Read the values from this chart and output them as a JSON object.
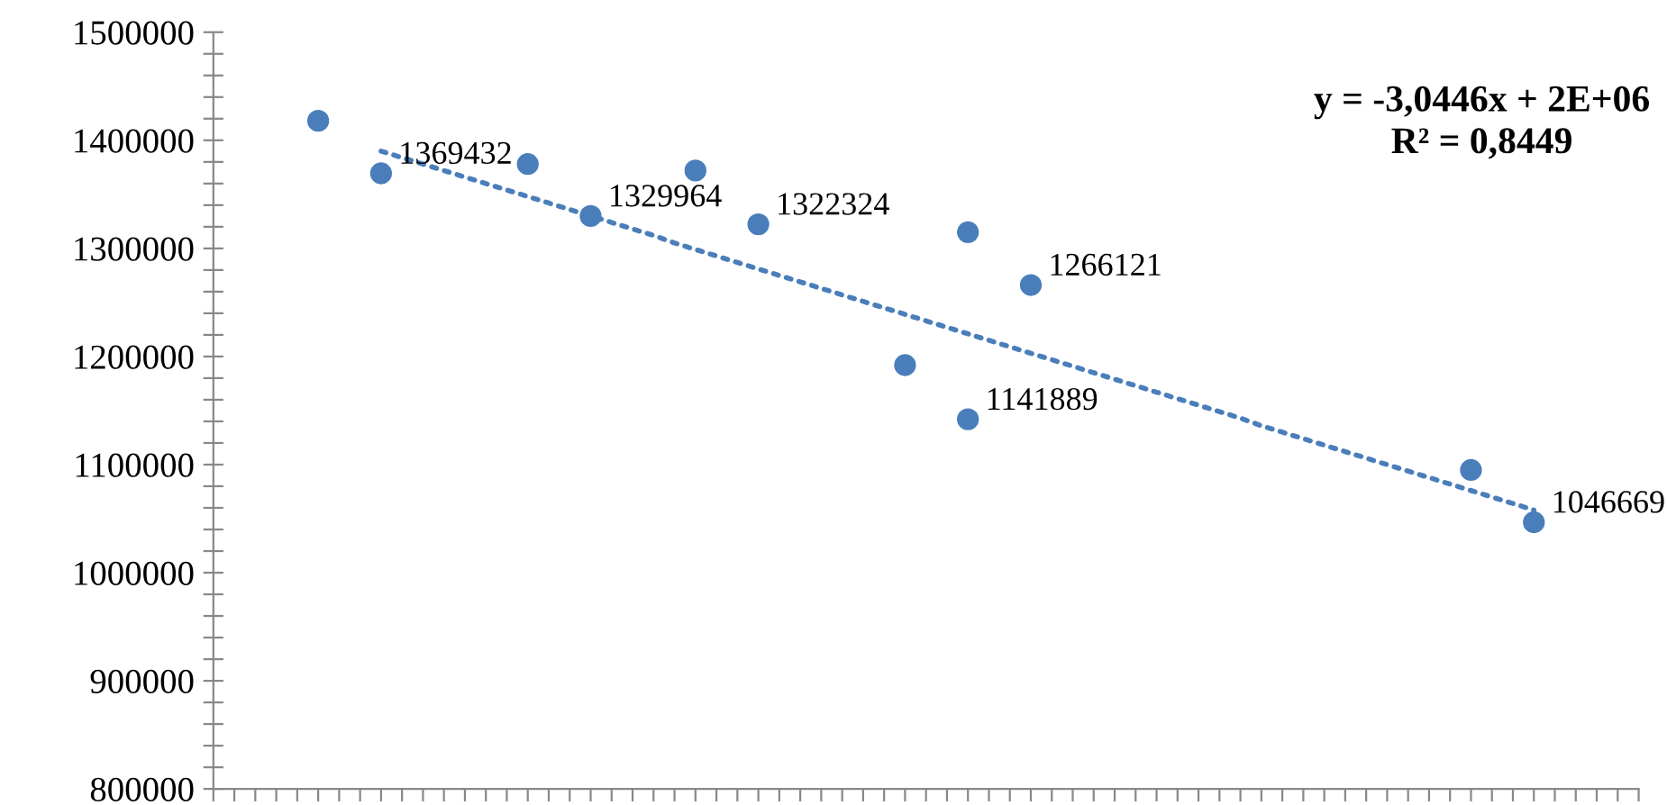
{
  "chart_data": {
    "type": "scatter",
    "ylim": [
      800000,
      1500000
    ],
    "yticks": [
      800000,
      {
        "value": 820000,
        "label": null
      },
      {
        "value": 840000,
        "label": null
      },
      {
        "value": 860000,
        "label": null
      },
      {
        "value": 880000,
        "label": null
      },
      900000,
      {
        "value": 920000,
        "label": null
      },
      {
        "value": 940000,
        "label": null
      },
      {
        "value": 960000,
        "label": null
      },
      {
        "value": 980000,
        "label": null
      },
      1000000,
      {
        "value": 1020000,
        "label": null
      },
      {
        "value": 1040000,
        "label": null
      },
      {
        "value": 1060000,
        "label": null
      },
      {
        "value": 1080000,
        "label": null
      },
      1100000,
      {
        "value": 1120000,
        "label": null
      },
      {
        "value": 1140000,
        "label": null
      },
      {
        "value": 1160000,
        "label": null
      },
      {
        "value": 1180000,
        "label": null
      },
      1200000,
      {
        "value": 1220000,
        "label": null
      },
      {
        "value": 1240000,
        "label": null
      },
      {
        "value": 1260000,
        "label": null
      },
      {
        "value": 1280000,
        "label": null
      },
      1300000,
      {
        "value": 1320000,
        "label": null
      },
      {
        "value": 1340000,
        "label": null
      },
      {
        "value": 1360000,
        "label": null
      },
      {
        "value": 1380000,
        "label": null
      },
      1400000,
      {
        "value": 1420000,
        "label": null
      },
      {
        "value": 1440000,
        "label": null
      },
      {
        "value": 1460000,
        "label": null
      },
      {
        "value": 1480000,
        "label": null
      },
      1500000
    ],
    "categories": [
      null,
      null,
      null,
      null,
      null,
      null,
      null,
      null,
      null,
      null,
      null,
      null,
      null,
      null,
      null,
      null,
      null,
      null,
      null,
      null,
      null,
      null,
      null,
      null,
      null,
      null,
      null,
      null,
      null,
      null,
      null,
      null,
      null,
      null,
      null,
      null,
      null,
      null,
      null,
      null,
      null,
      null,
      null,
      null,
      null,
      null,
      null,
      null,
      null,
      null,
      null,
      null,
      null,
      null,
      null,
      null,
      null,
      null,
      null,
      null,
      null,
      null,
      null,
      null,
      null,
      null,
      null,
      null,
      null
    ],
    "grid": false,
    "marker": "circle",
    "series": [
      {
        "color": "#4a7ebb",
        "values": [
          null,
          null,
          null,
          null,
          null,
          1418000,
          null,
          null,
          null,
          null,
          null,
          null,
          null,
          null,
          null,
          1378000,
          null,
          null,
          null,
          null,
          null,
          null,
          null,
          1372000,
          null,
          null,
          null,
          null,
          null,
          null,
          null,
          null,
          null,
          1192000,
          null,
          null,
          1315000,
          null,
          null,
          null,
          null,
          null,
          null,
          null,
          null,
          null,
          null,
          null,
          null,
          null,
          null,
          null,
          null,
          null,
          null,
          null,
          null,
          null,
          null,
          null,
          1095000,
          null,
          null,
          null,
          null,
          null,
          null,
          null,
          null
        ]
      },
      {
        "color": "#4a7ebb",
        "values": [
          null,
          null,
          null,
          null,
          null,
          null,
          null,
          null,
          1369432,
          null,
          null,
          null,
          null,
          null,
          null,
          null,
          null,
          null,
          1329964,
          null,
          null,
          null,
          null,
          null,
          null,
          null,
          1322324,
          null,
          null,
          null,
          null,
          null,
          null,
          null,
          null,
          null,
          1141889,
          null,
          null,
          1266121,
          null,
          null,
          null,
          null,
          null,
          null,
          null,
          null,
          null,
          null,
          null,
          null,
          null,
          null,
          null,
          null,
          null,
          null,
          null,
          null,
          null,
          null,
          null,
          1046669,
          null,
          null,
          null,
          null,
          null
        ],
        "value_labels": [
          null,
          null,
          null,
          null,
          null,
          null,
          null,
          null,
          "1369432",
          null,
          null,
          null,
          null,
          null,
          null,
          null,
          null,
          null,
          "1329964",
          null,
          null,
          null,
          null,
          null,
          null,
          null,
          "1322324",
          null,
          null,
          null,
          null,
          null,
          null,
          null,
          null,
          null,
          "1141889",
          null,
          null,
          "1266121",
          null,
          null,
          null,
          null,
          null,
          null,
          null,
          null,
          null,
          null,
          null,
          null,
          null,
          null,
          null,
          null,
          null,
          null,
          null,
          null,
          null,
          null,
          null,
          "1046669",
          null,
          null,
          null,
          null,
          null
        ]
      },
      {
        "type": "line",
        "color": "#4a7ebb",
        "line_style": "dotted",
        "marker": "none",
        "values": [
          null,
          null,
          null,
          null,
          null,
          null,
          null,
          null,
          1390000,
          1384000,
          1378000,
          1372000,
          1366000,
          1360000,
          1354000,
          1348000,
          1342000,
          1336000,
          1330000,
          1324000,
          1318000,
          1312000,
          1305000,
          1299000,
          1293000,
          1287000,
          1281000,
          1275000,
          1269000,
          1263000,
          1257000,
          1251000,
          1245000,
          1239000,
          1233000,
          1227000,
          1221000,
          1215000,
          1209000,
          1203000,
          1197000,
          1191000,
          1185000,
          1179000,
          1173000,
          1167000,
          1161000,
          1155000,
          1149000,
          1143000,
          1136000,
          1130000,
          1124000,
          1118000,
          1112000,
          1106000,
          1100000,
          1094000,
          1088000,
          1082000,
          1076000,
          1070000,
          1064000,
          1058000,
          null,
          null,
          null,
          null,
          null
        ]
      }
    ],
    "annotations": [
      "y = -3,0446x + 2E+06\nR² = 0,8449"
    ]
  }
}
